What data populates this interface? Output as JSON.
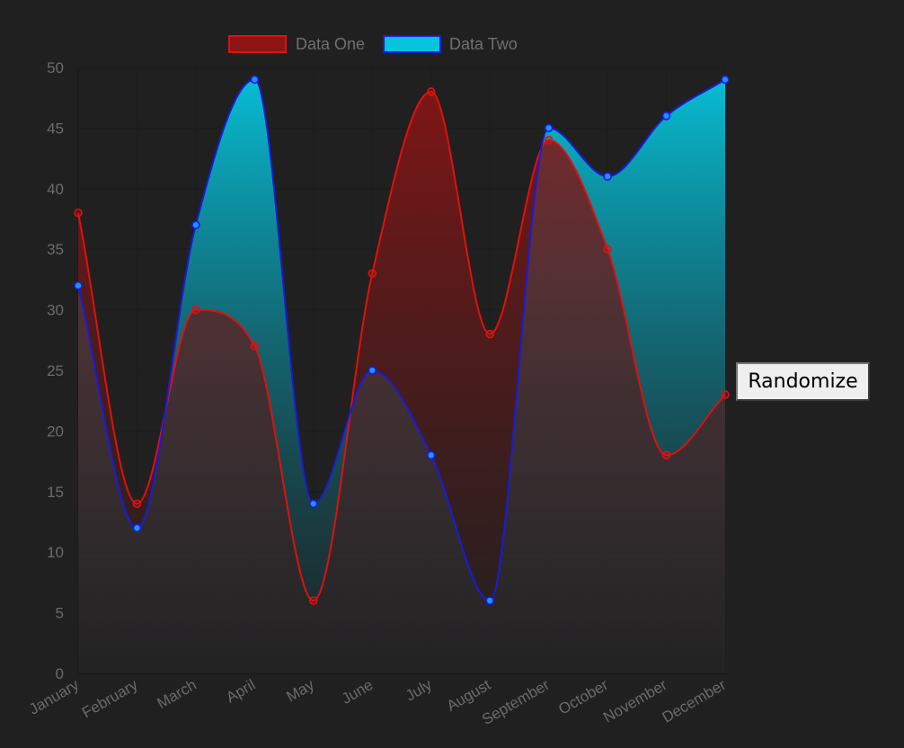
{
  "chart_data": {
    "type": "area",
    "categories": [
      "January",
      "February",
      "March",
      "April",
      "May",
      "June",
      "July",
      "August",
      "September",
      "October",
      "November",
      "December"
    ],
    "series": [
      {
        "name": "Data One",
        "values": [
          38,
          14,
          30,
          27,
          6,
          33,
          48,
          28,
          44,
          35,
          18,
          23
        ],
        "line_color": "#e01010",
        "fill_top": "#8e1414",
        "fill_bottom": "#2a2020"
      },
      {
        "name": "Data Two",
        "values": [
          32,
          12,
          37,
          49,
          14,
          25,
          18,
          6,
          45,
          41,
          46,
          49
        ],
        "line_color": "#1a1adf",
        "point_fill": "#1e90ff",
        "fill_top": "#06c4dc",
        "fill_bottom": "#1a2a2e"
      }
    ],
    "ylim": [
      0,
      50
    ],
    "y_ticks": [
      0,
      5,
      10,
      15,
      20,
      25,
      30,
      35,
      40,
      45,
      50
    ],
    "grid": true,
    "legend": "top-center",
    "title": "",
    "xlabel": "",
    "ylabel": "",
    "background": "#202020"
  },
  "controls": {
    "randomize_label": "Randomize"
  }
}
